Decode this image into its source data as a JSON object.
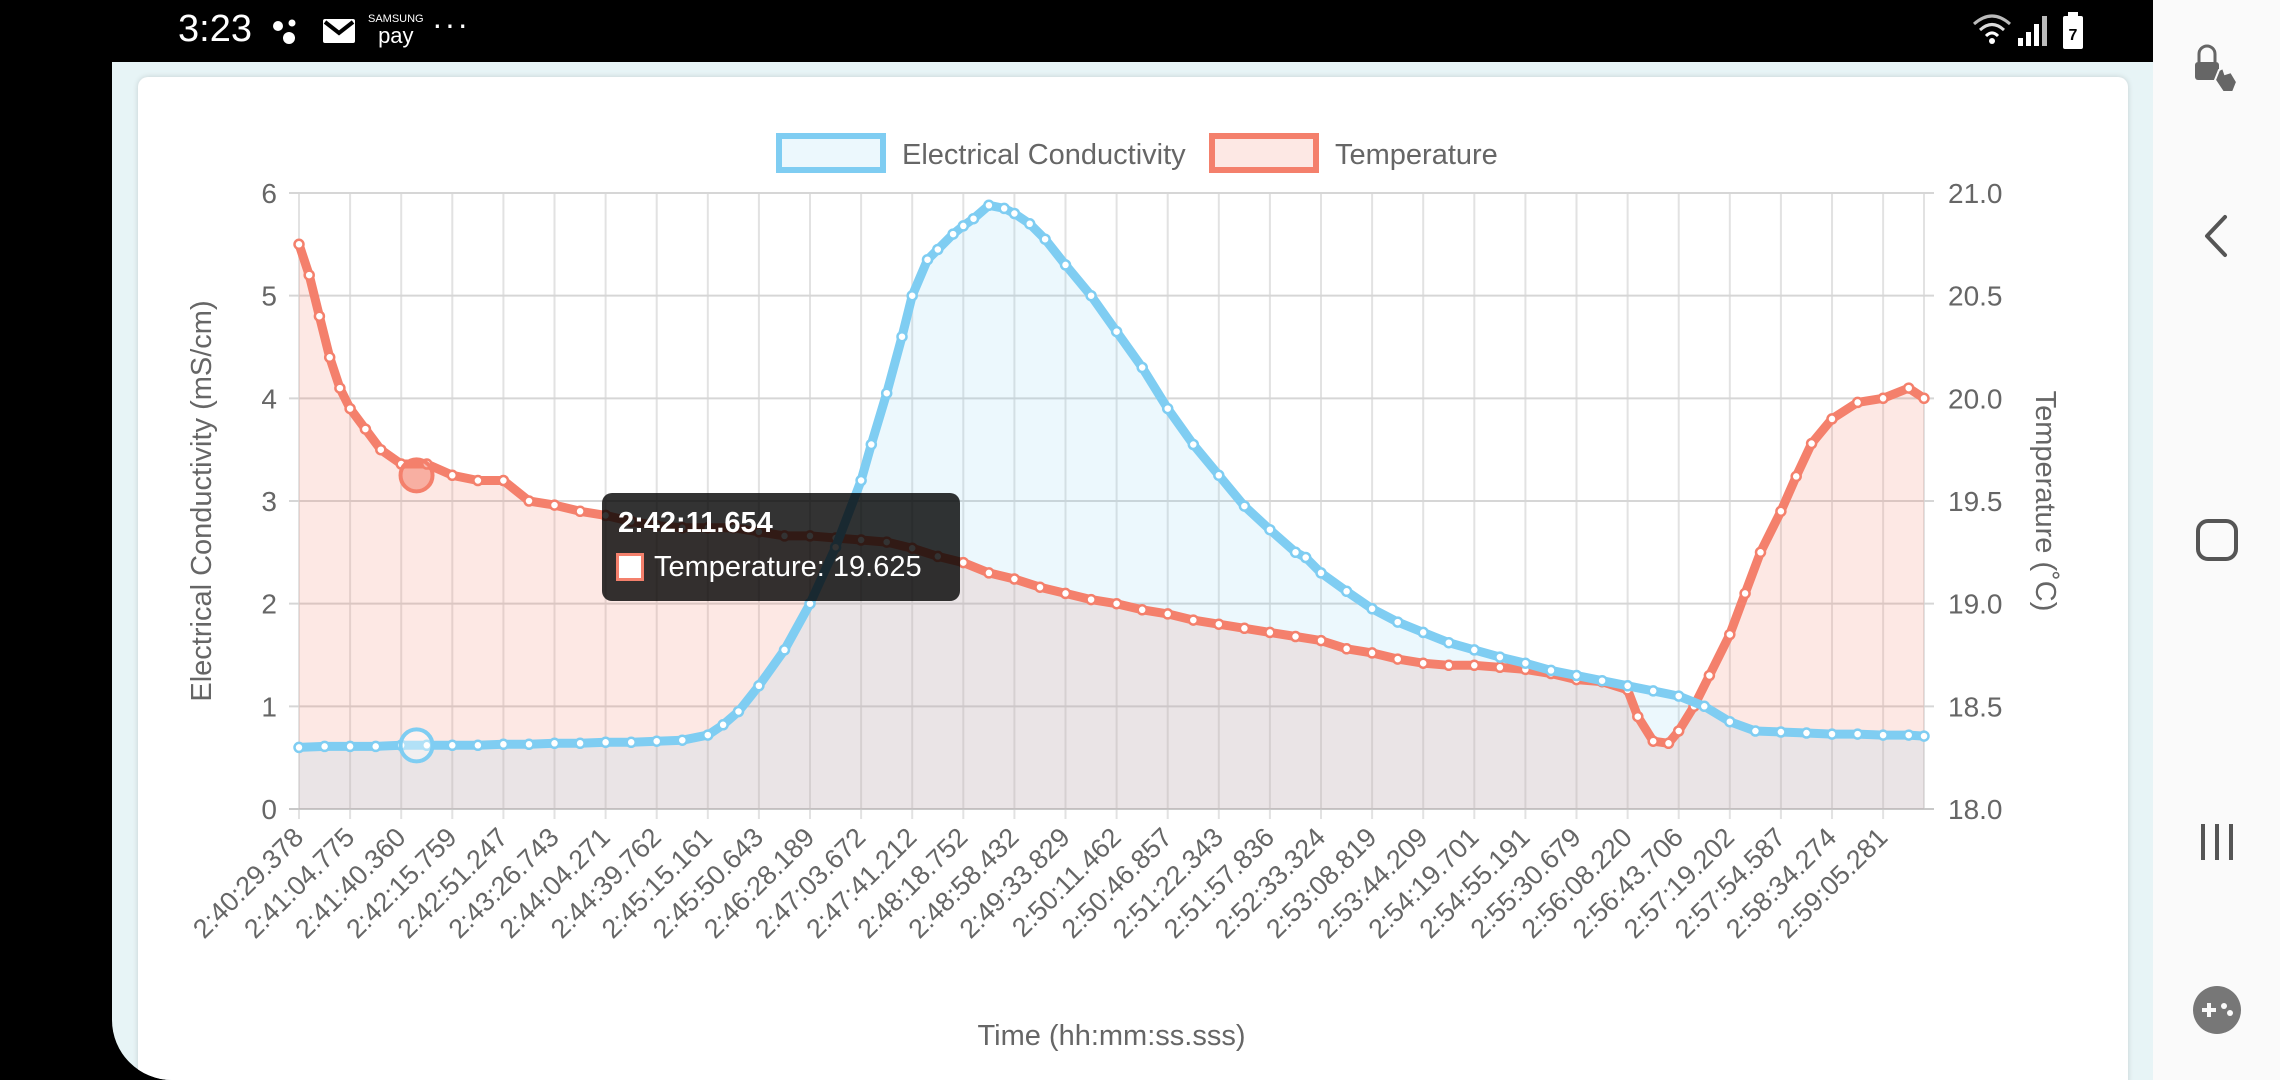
{
  "status_bar": {
    "time": "3:23",
    "pay_brand": "SAMSUNG",
    "pay_label": "pay",
    "more": "···",
    "battery": "7"
  },
  "colors": {
    "conductivity_line": "#7fcdf2",
    "conductivity_fill": "rgba(127,205,242,0.15)",
    "temperature_line": "#f4806c",
    "temperature_fill": "rgba(244,128,108,0.18)"
  },
  "tooltip": {
    "title": "2:42:11.654",
    "label": "Temperature: 19.625"
  },
  "chart_data": {
    "type": "line",
    "legend": [
      "Electrical Conductivity",
      "Temperature"
    ],
    "legend_position": "top-center",
    "xlabel": "Time (hh:mm:ss.sss)",
    "ylabel_left": "Electrical Conductivity (mS/cm)",
    "ylabel_right": "Temperature (˚C)",
    "y_left_range": [
      0,
      6
    ],
    "y_left_ticks": [
      "0",
      "1",
      "2",
      "3",
      "4",
      "5",
      "6"
    ],
    "y_right_range": [
      18.0,
      21.0
    ],
    "y_right_ticks": [
      "18.0",
      "18.5",
      "19.0",
      "19.5",
      "20.0",
      "20.5",
      "21.0"
    ],
    "x_tick_labels": [
      "2:40:29.378",
      "2:41:04.775",
      "2:41:40.360",
      "2:42:15.759",
      "2:42:51.247",
      "2:43:26.743",
      "2:44:04.271",
      "2:44:39.762",
      "2:45:15.161",
      "2:45:50.643",
      "2:46:28.189",
      "2:47:03.672",
      "2:47:41.212",
      "2:48:18.752",
      "2:48:58.432",
      "2:49:33.829",
      "2:50:11.462",
      "2:50:46.857",
      "2:51:22.343",
      "2:51:57.836",
      "2:52:33.324",
      "2:53:08.819",
      "2:53:44.209",
      "2:54:19.701",
      "2:54:55.191",
      "2:55:30.679",
      "2:56:08.220",
      "2:56:43.706",
      "2:57:19.202",
      "2:57:54.587",
      "2:58:34.274",
      "2:59:05.281"
    ],
    "grid": true,
    "series": [
      {
        "name": "Electrical Conductivity",
        "axis": "left",
        "x": [
          0,
          0.5,
          1,
          1.5,
          2,
          2.5,
          3,
          3.5,
          4,
          4.5,
          5,
          5.5,
          6,
          6.5,
          7,
          7.5,
          8,
          8.3,
          8.6,
          9,
          9.5,
          10,
          10.5,
          11,
          11.2,
          11.5,
          11.8,
          12,
          12.3,
          12.5,
          12.8,
          13,
          13.2,
          13.5,
          13.8,
          14,
          14.3,
          14.6,
          15,
          15.5,
          16,
          16.5,
          17,
          17.5,
          18,
          18.5,
          19,
          19.5,
          19.7,
          20,
          20.5,
          21,
          21.5,
          22,
          22.5,
          23,
          23.5,
          24,
          24.5,
          25,
          25.5,
          26,
          26.5,
          27,
          27.5,
          28,
          28.5,
          29,
          29.5,
          30,
          30.5,
          31,
          31.5,
          31.8
        ],
        "y": [
          0.6,
          0.61,
          0.61,
          0.61,
          0.62,
          0.62,
          0.62,
          0.62,
          0.63,
          0.63,
          0.64,
          0.64,
          0.65,
          0.65,
          0.66,
          0.67,
          0.72,
          0.82,
          0.95,
          1.2,
          1.55,
          2.0,
          2.55,
          3.2,
          3.55,
          4.05,
          4.6,
          5.0,
          5.35,
          5.45,
          5.6,
          5.68,
          5.75,
          5.88,
          5.85,
          5.8,
          5.7,
          5.55,
          5.3,
          5.0,
          4.65,
          4.3,
          3.9,
          3.55,
          3.25,
          2.95,
          2.72,
          2.5,
          2.45,
          2.3,
          2.12,
          1.95,
          1.82,
          1.72,
          1.62,
          1.55,
          1.48,
          1.42,
          1.35,
          1.3,
          1.25,
          1.2,
          1.15,
          1.1,
          1.0,
          0.85,
          0.76,
          0.75,
          0.74,
          0.73,
          0.73,
          0.72,
          0.72,
          0.71
        ]
      },
      {
        "name": "Temperature",
        "axis": "right",
        "x": [
          0,
          0.2,
          0.4,
          0.6,
          0.8,
          1,
          1.3,
          1.6,
          2,
          2.5,
          3,
          3.5,
          4,
          4.5,
          5,
          5.5,
          6,
          6.5,
          7,
          7.5,
          8,
          8.5,
          9,
          9.5,
          10,
          10.5,
          11,
          11.5,
          12,
          12.5,
          13,
          13.5,
          14,
          14.5,
          15,
          15.5,
          16,
          16.5,
          17,
          17.5,
          18,
          18.5,
          19,
          19.5,
          20,
          20.5,
          21,
          21.5,
          22,
          22.5,
          23,
          23.5,
          24,
          24.5,
          25,
          25.5,
          26,
          26.2,
          26.5,
          26.8,
          27,
          27.3,
          27.6,
          28,
          28.3,
          28.6,
          29,
          29.3,
          29.6,
          30,
          30.5,
          31,
          31.5,
          31.8
        ],
        "y": [
          20.75,
          20.6,
          20.4,
          20.2,
          20.05,
          19.95,
          19.85,
          19.75,
          19.68,
          19.68,
          19.625,
          19.6,
          19.6,
          19.5,
          19.48,
          19.45,
          19.43,
          19.4,
          19.38,
          19.37,
          19.37,
          19.37,
          19.35,
          19.33,
          19.33,
          19.32,
          19.31,
          19.3,
          19.27,
          19.23,
          19.2,
          19.15,
          19.12,
          19.08,
          19.05,
          19.02,
          19.0,
          18.97,
          18.95,
          18.92,
          18.9,
          18.88,
          18.86,
          18.84,
          18.82,
          18.78,
          18.76,
          18.73,
          18.71,
          18.7,
          18.7,
          18.69,
          18.68,
          18.66,
          18.63,
          18.62,
          18.58,
          18.45,
          18.33,
          18.32,
          18.38,
          18.5,
          18.65,
          18.85,
          19.05,
          19.25,
          19.45,
          19.62,
          19.78,
          19.9,
          19.98,
          20.0,
          20.05,
          20.0
        ]
      }
    ]
  }
}
